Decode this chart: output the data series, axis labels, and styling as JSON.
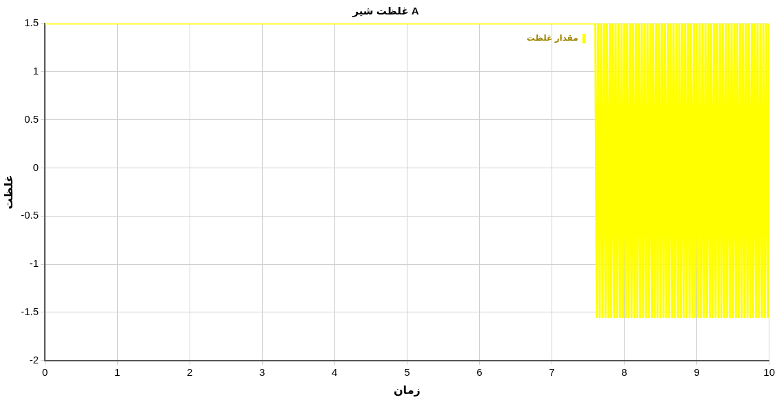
{
  "chart_data": {
    "type": "line",
    "title": "غلظت شیر A",
    "xlabel": "زمان",
    "ylabel": "غلظت",
    "xlim": [
      0,
      10
    ],
    "xticks": [
      0,
      1,
      2,
      3,
      4,
      5,
      6,
      7,
      8,
      9,
      10
    ],
    "ylim": [
      -2,
      1.5
    ],
    "yticks": [
      -2,
      -1.5,
      -1,
      -0.5,
      0,
      0.5,
      1,
      1.5
    ],
    "grid": true,
    "legend": "top right",
    "marker": "none",
    "line_style": "solid",
    "series": [
      {
        "name": "مقدار غلظت",
        "color": "#ffff00",
        "x": [
          0,
          7.6,
          7.62,
          7.64,
          7.66,
          7.68,
          7.7,
          7.72,
          7.74,
          7.76,
          7.78,
          7.8,
          7.82,
          7.84,
          7.86,
          7.88,
          7.9,
          7.92,
          7.94,
          7.96,
          7.98,
          8,
          8.02,
          8.04,
          8.06,
          8.08,
          8.1,
          8.12,
          8.14,
          8.16,
          8.18,
          8.2,
          8.22,
          8.24,
          8.26,
          8.28,
          8.3,
          8.32,
          8.34,
          8.36,
          8.38,
          8.4,
          8.42,
          8.44,
          8.46,
          8.48,
          8.5,
          8.52,
          8.54,
          8.56,
          8.58,
          8.6,
          8.62,
          8.64,
          8.66,
          8.68,
          8.7,
          8.72,
          8.74,
          8.76,
          8.78,
          8.8,
          8.82,
          8.84,
          8.86,
          8.88,
          8.9,
          8.92,
          8.94,
          8.96,
          8.98,
          9,
          9.02,
          9.04,
          9.06,
          9.08,
          9.1,
          9.12,
          9.14,
          9.16,
          9.18,
          9.2,
          9.22,
          9.24,
          9.26,
          9.28,
          9.3,
          9.32,
          9.34,
          9.36,
          9.38,
          9.4,
          9.42,
          9.44,
          9.46,
          9.48,
          9.5,
          9.52,
          9.54,
          9.56,
          9.58,
          9.6,
          9.62,
          9.64,
          9.66,
          9.68,
          9.7,
          9.72,
          9.74,
          9.76,
          9.78,
          9.8,
          9.82,
          9.84,
          9.86,
          9.88,
          9.9,
          9.92,
          9.94,
          9.96,
          9.98,
          10
        ],
        "values": [
          1.5,
          1.5,
          -1.55,
          1.5,
          -1.55,
          1.5,
          -1.55,
          1.5,
          -1.55,
          1.5,
          -1.55,
          1.5,
          -1.55,
          1.5,
          -1.55,
          1.5,
          -1.55,
          1.5,
          -1.55,
          1.5,
          -1.55,
          1.5,
          -1.55,
          1.5,
          -1.55,
          1.5,
          -1.55,
          1.5,
          -1.55,
          1.5,
          -1.55,
          1.5,
          -1.55,
          1.5,
          -1.55,
          1.5,
          -1.55,
          1.5,
          -1.55,
          1.5,
          -1.55,
          1.5,
          -1.55,
          1.5,
          -1.55,
          1.5,
          -1.55,
          1.5,
          -1.55,
          1.5,
          -1.55,
          1.5,
          -1.55,
          1.5,
          -1.55,
          1.5,
          -1.55,
          1.5,
          -1.55,
          1.5,
          -1.55,
          1.5,
          -1.55,
          1.5,
          -1.55,
          1.5,
          -1.55,
          1.5,
          -1.55,
          1.5,
          -1.55,
          1.5,
          -1.55,
          1.5,
          -1.55,
          1.5,
          -1.55,
          1.5,
          -1.55,
          1.5,
          -1.55,
          1.5,
          -1.55,
          1.5,
          -1.55,
          1.5,
          -1.55,
          1.5,
          -1.55,
          1.5,
          -1.55,
          1.5,
          -1.55,
          1.5,
          -1.55,
          1.5,
          -1.55,
          1.5,
          -1.55,
          1.5,
          -1.55,
          1.5,
          -1.55,
          1.5,
          -1.55,
          1.5,
          -1.55,
          1.5,
          -1.55,
          1.5,
          -1.55,
          1.5,
          -1.55,
          1.5,
          -1.55,
          1.5,
          -1.55,
          1.5,
          -1.55,
          1.5,
          -1.55,
          1.5
        ]
      }
    ]
  }
}
